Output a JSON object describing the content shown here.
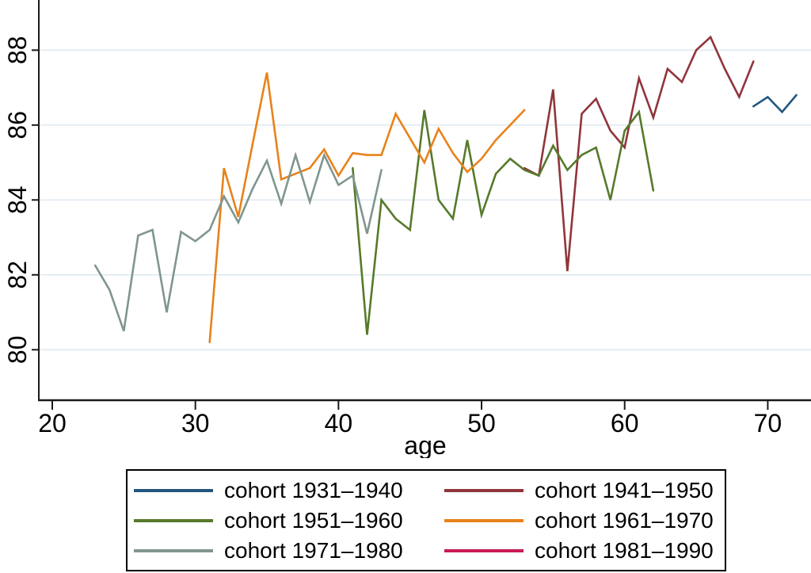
{
  "chart_data": {
    "type": "line",
    "title": "",
    "xlabel": "age",
    "ylabel": "",
    "x_ticks": [
      20,
      30,
      40,
      50,
      60,
      70
    ],
    "y_ticks": [
      80,
      82,
      84,
      86,
      88
    ],
    "x_range": [
      19.1,
      73.0
    ],
    "y_range_visible": [
      78.6,
      89.3
    ],
    "grid": "horizontal-only",
    "grid_color": "#dfeaf2",
    "axis_color": "#1a1a1a",
    "background_color": "#ffffff",
    "legend_position": "below-chart-boxed",
    "scale": {
      "x20": 66,
      "pxYear": 18.068,
      "y88": 63.3,
      "pxUnit": 47.25,
      "axisX": 49,
      "axisBottom": 505,
      "plotRight": 1024,
      "plotTop": 0
    },
    "series": [
      {
        "name": "cohort 1931–1940",
        "color": "#23567e",
        "points": [
          [
            69,
            86.5
          ],
          [
            70,
            86.75
          ],
          [
            71,
            86.35
          ],
          [
            72,
            86.8
          ]
        ]
      },
      {
        "name": "cohort 1941–1950",
        "color": "#90353b",
        "points": [
          [
            53,
            84.85
          ],
          [
            54,
            84.65
          ],
          [
            55,
            86.95
          ],
          [
            56,
            82.1
          ],
          [
            57,
            86.3
          ],
          [
            58,
            86.7
          ],
          [
            59,
            85.85
          ],
          [
            60,
            85.4
          ],
          [
            61,
            87.25
          ],
          [
            62,
            86.2
          ],
          [
            63,
            87.5
          ],
          [
            64,
            87.15
          ],
          [
            65,
            88.0
          ],
          [
            66,
            88.35
          ],
          [
            67,
            87.5
          ],
          [
            68,
            86.75
          ],
          [
            69,
            87.7
          ]
        ]
      },
      {
        "name": "cohort 1951–1960",
        "color": "#567a2b",
        "points": [
          [
            41,
            84.85
          ],
          [
            42,
            80.4
          ],
          [
            43,
            84.0
          ],
          [
            44,
            83.5
          ],
          [
            45,
            83.2
          ],
          [
            46,
            86.4
          ],
          [
            47,
            84.0
          ],
          [
            48,
            83.5
          ],
          [
            49,
            85.6
          ],
          [
            50,
            83.6
          ],
          [
            51,
            84.7
          ],
          [
            52,
            85.1
          ],
          [
            53,
            84.8
          ],
          [
            54,
            84.65
          ],
          [
            55,
            85.45
          ],
          [
            56,
            84.8
          ],
          [
            57,
            85.2
          ],
          [
            58,
            85.4
          ],
          [
            59,
            84.0
          ],
          [
            60,
            85.85
          ],
          [
            61,
            86.35
          ],
          [
            62,
            84.25
          ]
        ]
      },
      {
        "name": "cohort 1961–1970",
        "color": "#e8821a",
        "points": [
          [
            31,
            80.2
          ],
          [
            32,
            84.85
          ],
          [
            33,
            83.55
          ],
          [
            34,
            85.5
          ],
          [
            35,
            87.4
          ],
          [
            36,
            84.55
          ],
          [
            37,
            84.7
          ],
          [
            38,
            84.85
          ],
          [
            39,
            85.35
          ],
          [
            40,
            84.65
          ],
          [
            41,
            85.25
          ],
          [
            42,
            85.2
          ],
          [
            43,
            85.2
          ],
          [
            44,
            86.3
          ],
          [
            45,
            85.65
          ],
          [
            46,
            85.0
          ],
          [
            47,
            85.9
          ],
          [
            48,
            85.25
          ],
          [
            49,
            84.75
          ],
          [
            50,
            85.1
          ],
          [
            51,
            85.6
          ],
          [
            52,
            86.0
          ],
          [
            53,
            86.4
          ]
        ]
      },
      {
        "name": "cohort 1971–1980",
        "color": "#7f968e",
        "points": [
          [
            23,
            82.25
          ],
          [
            24,
            81.6
          ],
          [
            25,
            80.5
          ],
          [
            26,
            83.05
          ],
          [
            27,
            83.2
          ],
          [
            28,
            81.0
          ],
          [
            29,
            83.15
          ],
          [
            30,
            82.9
          ],
          [
            31,
            83.2
          ],
          [
            32,
            84.1
          ],
          [
            33,
            83.4
          ],
          [
            34,
            84.3
          ],
          [
            35,
            85.05
          ],
          [
            36,
            83.9
          ],
          [
            37,
            85.2
          ],
          [
            38,
            83.95
          ],
          [
            39,
            85.2
          ],
          [
            40,
            84.4
          ],
          [
            41,
            84.65
          ],
          [
            42,
            83.1
          ],
          [
            43,
            84.8
          ]
        ]
      },
      {
        "name": "cohort 1981–1990",
        "color": "#c91a52",
        "points": []
      }
    ]
  }
}
